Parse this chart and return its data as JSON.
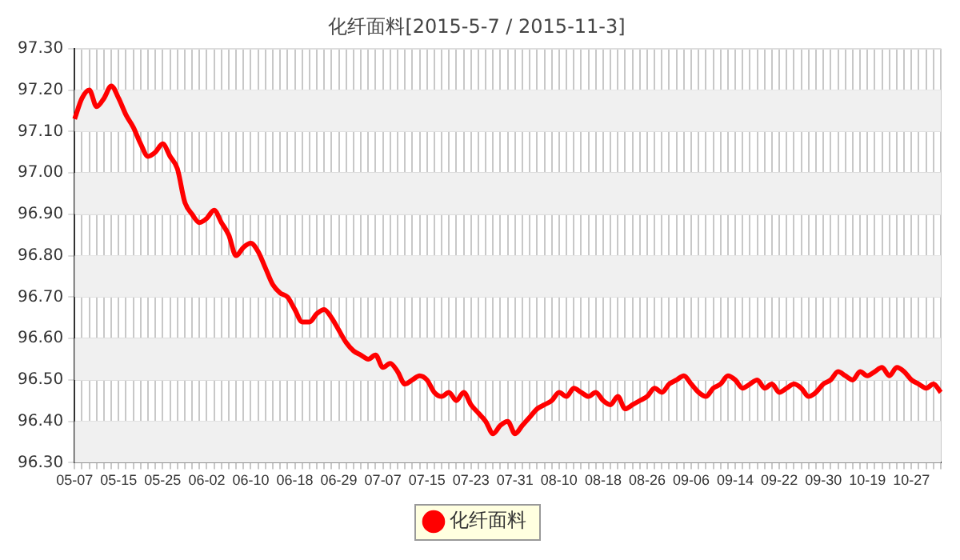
{
  "chart_data": {
    "type": "line",
    "title": "化纤面料[2015-5-7 / 2015-11-3]",
    "categories": [
      "05-07",
      null,
      null,
      null,
      null,
      null,
      "05-15",
      null,
      null,
      null,
      null,
      null,
      "05-25",
      null,
      null,
      null,
      null,
      null,
      "06-02",
      null,
      null,
      null,
      null,
      null,
      "06-10",
      null,
      null,
      null,
      null,
      null,
      "06-18",
      null,
      null,
      null,
      null,
      null,
      "06-29",
      null,
      null,
      null,
      null,
      null,
      "07-07",
      null,
      null,
      null,
      null,
      null,
      "07-15",
      null,
      null,
      null,
      null,
      null,
      "07-23",
      null,
      null,
      null,
      null,
      null,
      "07-31",
      null,
      null,
      null,
      null,
      null,
      "08-10",
      null,
      null,
      null,
      null,
      null,
      "08-18",
      null,
      null,
      null,
      null,
      null,
      "08-26",
      null,
      null,
      null,
      null,
      null,
      "09-06",
      null,
      null,
      null,
      null,
      null,
      "09-14",
      null,
      null,
      null,
      null,
      null,
      "09-22",
      null,
      null,
      null,
      null,
      null,
      "09-30",
      null,
      null,
      null,
      null,
      null,
      "10-19",
      null,
      null,
      null,
      null,
      null,
      "10-27",
      null,
      null,
      null,
      null
    ],
    "series": [
      {
        "name": "化纤面料",
        "color": "#ff0000",
        "values": [
          97.13,
          97.18,
          97.2,
          97.16,
          97.18,
          97.21,
          97.18,
          97.14,
          97.11,
          97.07,
          97.04,
          97.05,
          97.07,
          97.04,
          97.01,
          96.93,
          96.9,
          96.88,
          96.89,
          96.91,
          96.88,
          96.85,
          96.8,
          96.82,
          96.83,
          96.81,
          96.77,
          96.73,
          96.71,
          96.7,
          96.67,
          96.64,
          96.64,
          96.66,
          96.67,
          96.65,
          96.62,
          96.59,
          96.57,
          96.56,
          96.55,
          96.56,
          96.53,
          96.54,
          96.52,
          96.49,
          96.5,
          96.51,
          96.5,
          96.47,
          96.46,
          96.47,
          96.45,
          96.47,
          96.44,
          96.42,
          96.4,
          96.37,
          96.39,
          96.4,
          96.37,
          96.39,
          96.41,
          96.43,
          96.44,
          96.45,
          96.47,
          96.46,
          96.48,
          96.47,
          96.46,
          96.47,
          96.45,
          96.44,
          96.46,
          96.43,
          96.44,
          96.45,
          96.46,
          96.48,
          96.47,
          96.49,
          96.5,
          96.51,
          96.49,
          96.47,
          96.46,
          96.48,
          96.49,
          96.51,
          96.5,
          96.48,
          96.49,
          96.5,
          96.48,
          96.49,
          96.47,
          96.48,
          96.49,
          96.48,
          96.46,
          96.47,
          96.49,
          96.5,
          96.52,
          96.51,
          96.5,
          96.52,
          96.51,
          96.52,
          96.53,
          96.51,
          96.53,
          96.52,
          96.5,
          96.49,
          96.48,
          96.49,
          96.47
        ]
      }
    ],
    "ylim": [
      96.3,
      97.3
    ],
    "yticks": [
      {
        "value": 96.3,
        "label": "96.30"
      },
      {
        "value": 96.4,
        "label": "96.40"
      },
      {
        "value": 96.5,
        "label": "96.50"
      },
      {
        "value": 96.6,
        "label": "96.60"
      },
      {
        "value": 96.7,
        "label": "96.70"
      },
      {
        "value": 96.8,
        "label": "96.80"
      },
      {
        "value": 96.9,
        "label": "96.90"
      },
      {
        "value": 97.0,
        "label": "97.00"
      },
      {
        "value": 97.1,
        "label": "97.10"
      },
      {
        "value": 97.2,
        "label": "97.20"
      },
      {
        "value": 97.3,
        "label": "97.30"
      }
    ],
    "grid": true,
    "legend": "bottom",
    "marker": "none",
    "line_style": "solid"
  }
}
